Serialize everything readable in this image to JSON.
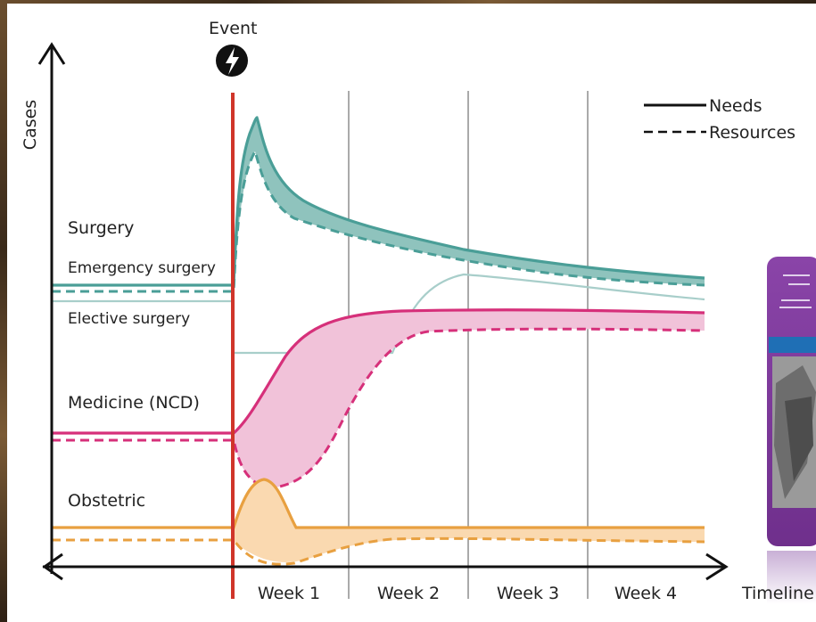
{
  "event_label": "Event",
  "y_axis_label": "Cases",
  "x_axis_label": "Timeline",
  "week_labels": [
    "Week 1",
    "Week 2",
    "Week 3",
    "Week 4"
  ],
  "legend": {
    "needs": "Needs",
    "resources": "Resources"
  },
  "categories": {
    "surgery": "Surgery",
    "emergency_surgery": "Emergency surgery",
    "elective_surgery": "Elective surgery",
    "medicine": "Medicine (NCD)",
    "obstetric": "Obstetric"
  },
  "colors": {
    "event_line": "#d0352a",
    "emergency": "#4a9e97",
    "emergency_fill": "#8fc3bd",
    "elective": "#a8ceca",
    "medicine": "#d6307a",
    "medicine_fill": "#f1c2d9",
    "obstetric": "#e8a040",
    "obstetric_fill": "#fad9b0",
    "book_cover": "#7d3a9a"
  },
  "icons": {
    "event": "lightning-bolt-icon"
  }
}
